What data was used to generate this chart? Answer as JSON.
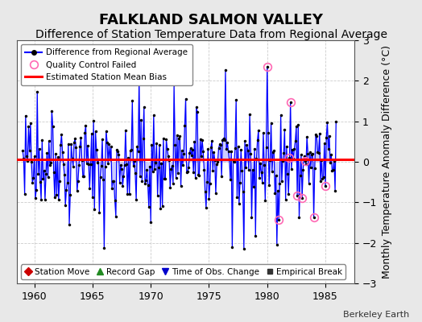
{
  "title": "FALKLAND SALMON VALLEY",
  "subtitle": "Difference of Station Temperature Data from Regional Average",
  "ylabel": "Monthly Temperature Anomaly Difference (°C)",
  "xlim": [
    1958.5,
    1987.5
  ],
  "ylim": [
    -3,
    3
  ],
  "yticks": [
    -3,
    -2,
    -1,
    0,
    1,
    2,
    3
  ],
  "xticks": [
    1960,
    1965,
    1970,
    1975,
    1980,
    1985
  ],
  "bias_line": 0.05,
  "bias_color": "#ff0000",
  "line_color": "#0000ff",
  "fill_color": "#aaaaff",
  "marker_color": "#000000",
  "qc_fail_color": "#ff69b4",
  "background_color": "#e8e8e8",
  "plot_bg_color": "#ffffff",
  "title_fontsize": 13,
  "subtitle_fontsize": 10,
  "tick_fontsize": 9,
  "ylabel_fontsize": 9,
  "watermark": "Berkeley Earth",
  "seed": 42,
  "n_months": 324,
  "start_year": 1959.0,
  "legend1_entries": [
    {
      "label": "Difference from Regional Average",
      "color": "#0000ff",
      "marker": "o",
      "lw": 1.5
    },
    {
      "label": "Quality Control Failed",
      "color": "#ff69b4",
      "marker": "o",
      "lw": 0,
      "mfc": "none"
    },
    {
      "label": "Estimated Station Mean Bias",
      "color": "#ff0000",
      "lw": 2,
      "marker": "none"
    }
  ],
  "legend2_entries": [
    {
      "label": "Station Move",
      "color": "#cc0000",
      "marker": "D"
    },
    {
      "label": "Record Gap",
      "color": "#228B22",
      "marker": "^"
    },
    {
      "label": "Time of Obs. Change",
      "color": "#0000cc",
      "marker": "v"
    },
    {
      "label": "Empirical Break",
      "color": "#333333",
      "marker": "s"
    }
  ]
}
